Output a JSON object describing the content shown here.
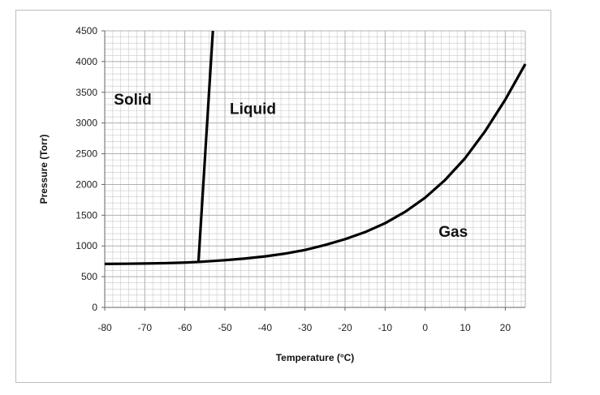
{
  "chart_data": {
    "type": "line",
    "title": "",
    "xlabel": "Temperature (°C)",
    "ylabel": "Pressure (Torr)",
    "xlim": [
      -80,
      25
    ],
    "ylim": [
      0,
      4500
    ],
    "x_ticks": [
      -80,
      -70,
      -60,
      -50,
      -40,
      -30,
      -20,
      -10,
      0,
      10,
      20
    ],
    "y_ticks": [
      0,
      500,
      1000,
      1500,
      2000,
      2500,
      3000,
      3500,
      4000,
      4500
    ],
    "grid": true,
    "line_color": "#000000",
    "grid_color": "#b0b0b0",
    "series": [
      {
        "x": [
          -80,
          -75,
          -70,
          -65,
          -60,
          -56.6,
          -50,
          -45,
          -40,
          -35,
          -30,
          -25,
          -20,
          -15,
          -10,
          -5,
          0,
          5,
          10,
          15,
          20,
          25
        ],
        "y": [
          708,
          710,
          714,
          720,
          730,
          740,
          768,
          795,
          830,
          875,
          935,
          1015,
          1110,
          1225,
          1370,
          1555,
          1785,
          2075,
          2430,
          2870,
          3380,
          3960
        ]
      },
      {
        "x": [
          -56.6,
          -53
        ],
        "y": [
          740,
          4500
        ]
      }
    ],
    "annotations": [
      {
        "text": "Solid",
        "x": -73,
        "y": 3300
      },
      {
        "text": "Liquid",
        "x": -43,
        "y": 3150
      },
      {
        "text": "Gas",
        "x": 7,
        "y": 1150
      }
    ]
  }
}
